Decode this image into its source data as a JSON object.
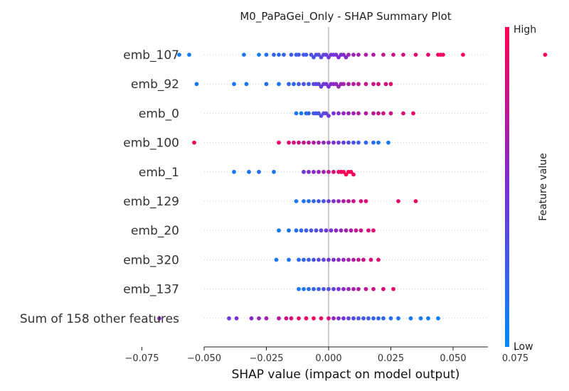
{
  "chart_data": {
    "type": "scatter",
    "title": "M0_PaPaGei_Only - SHAP Summary Plot",
    "xlabel": "SHAP value (impact on model output)",
    "xlim": [
      -0.078,
      0.095
    ],
    "xticks": [
      "−0.075",
      "−0.050",
      "−0.025",
      "0.000",
      "0.025",
      "0.050",
      "0.075"
    ],
    "xtick_values": [
      -0.075,
      -0.05,
      -0.025,
      0.0,
      0.025,
      0.05,
      0.075
    ],
    "features": [
      "emb_107",
      "emb_92",
      "emb_0",
      "emb_100",
      "emb_1",
      "emb_129",
      "emb_20",
      "emb_320",
      "emb_137",
      "Sum of 158 other features"
    ],
    "colorbar": {
      "label": "Feature value",
      "high": "High",
      "low": "Low"
    },
    "colors": {
      "low": "#008bfb",
      "mid": "#7b2fd4",
      "high": "#ff0052",
      "zero_line": "#999999",
      "grid": "#cccccc"
    },
    "series": [
      {
        "feature": "emb_107",
        "points": [
          [
            -0.06,
            0.1
          ],
          [
            -0.056,
            0.08
          ],
          [
            -0.034,
            0.12
          ],
          [
            -0.028,
            0.1
          ],
          [
            -0.025,
            0.15
          ],
          [
            -0.022,
            0.2
          ],
          [
            -0.02,
            0.18
          ],
          [
            -0.018,
            0.22
          ],
          [
            -0.015,
            0.25
          ],
          [
            -0.013,
            0.2
          ],
          [
            -0.012,
            0.3
          ],
          [
            -0.01,
            0.28
          ],
          [
            -0.009,
            0.25
          ],
          [
            -0.007,
            0.32
          ],
          [
            -0.006,
            0.3
          ],
          [
            -0.005,
            0.35
          ],
          [
            -0.004,
            0.33
          ],
          [
            -0.003,
            0.38
          ],
          [
            -0.002,
            0.4
          ],
          [
            -0.001,
            0.42
          ],
          [
            0.0,
            0.45
          ],
          [
            0.001,
            0.48
          ],
          [
            0.002,
            0.5
          ],
          [
            0.003,
            0.46
          ],
          [
            0.004,
            0.52
          ],
          [
            0.005,
            0.5
          ],
          [
            0.006,
            0.55
          ],
          [
            0.007,
            0.52
          ],
          [
            0.008,
            0.6
          ],
          [
            0.01,
            0.62
          ],
          [
            0.012,
            0.65
          ],
          [
            0.015,
            0.7
          ],
          [
            0.018,
            0.68
          ],
          [
            0.022,
            0.75
          ],
          [
            0.026,
            0.8
          ],
          [
            0.03,
            0.82
          ],
          [
            0.035,
            0.88
          ],
          [
            0.04,
            0.9
          ],
          [
            0.044,
            0.92
          ],
          [
            0.045,
            0.95
          ],
          [
            0.046,
            0.94
          ],
          [
            0.054,
            0.96
          ],
          [
            0.087,
            1.0
          ]
        ]
      },
      {
        "feature": "emb_92",
        "points": [
          [
            -0.053,
            0.1
          ],
          [
            -0.038,
            0.12
          ],
          [
            -0.033,
            0.1
          ],
          [
            -0.025,
            0.15
          ],
          [
            -0.02,
            0.12
          ],
          [
            -0.016,
            0.2
          ],
          [
            -0.014,
            0.18
          ],
          [
            -0.012,
            0.25
          ],
          [
            -0.01,
            0.3
          ],
          [
            -0.008,
            0.28
          ],
          [
            -0.006,
            0.35
          ],
          [
            -0.005,
            0.4
          ],
          [
            -0.004,
            0.38
          ],
          [
            -0.003,
            0.42
          ],
          [
            -0.002,
            0.45
          ],
          [
            -0.001,
            0.48
          ],
          [
            0.0,
            0.5
          ],
          [
            0.001,
            0.52
          ],
          [
            0.002,
            0.55
          ],
          [
            0.003,
            0.58
          ],
          [
            0.004,
            0.6
          ],
          [
            0.005,
            0.62
          ],
          [
            0.006,
            0.65
          ],
          [
            0.008,
            0.68
          ],
          [
            0.01,
            0.72
          ],
          [
            0.012,
            0.75
          ],
          [
            0.015,
            0.78
          ],
          [
            0.018,
            0.8
          ],
          [
            0.02,
            0.82
          ],
          [
            0.023,
            0.85
          ],
          [
            0.025,
            0.88
          ]
        ]
      },
      {
        "feature": "emb_0",
        "points": [
          [
            -0.013,
            0.1
          ],
          [
            -0.011,
            0.12
          ],
          [
            -0.009,
            0.15
          ],
          [
            -0.008,
            0.2
          ],
          [
            -0.006,
            0.25
          ],
          [
            -0.005,
            0.28
          ],
          [
            -0.004,
            0.3
          ],
          [
            -0.003,
            0.35
          ],
          [
            -0.002,
            0.38
          ],
          [
            -0.001,
            0.4
          ],
          [
            0.0,
            0.45
          ],
          [
            0.002,
            0.5
          ],
          [
            0.004,
            0.55
          ],
          [
            0.006,
            0.58
          ],
          [
            0.008,
            0.6
          ],
          [
            0.01,
            0.65
          ],
          [
            0.012,
            0.68
          ],
          [
            0.015,
            0.7
          ],
          [
            0.018,
            0.75
          ],
          [
            0.02,
            0.78
          ],
          [
            0.022,
            0.8
          ],
          [
            0.025,
            0.82
          ],
          [
            0.03,
            0.85
          ],
          [
            0.034,
            0.9
          ]
        ]
      },
      {
        "feature": "emb_100",
        "points": [
          [
            -0.054,
            0.95
          ],
          [
            -0.02,
            0.9
          ],
          [
            -0.016,
            0.88
          ],
          [
            -0.014,
            0.85
          ],
          [
            -0.012,
            0.8
          ],
          [
            -0.01,
            0.78
          ],
          [
            -0.008,
            0.75
          ],
          [
            -0.006,
            0.7
          ],
          [
            -0.004,
            0.65
          ],
          [
            -0.002,
            0.6
          ],
          [
            0.0,
            0.55
          ],
          [
            0.002,
            0.5
          ],
          [
            0.004,
            0.45
          ],
          [
            0.006,
            0.4
          ],
          [
            0.008,
            0.35
          ],
          [
            0.01,
            0.3
          ],
          [
            0.012,
            0.25
          ],
          [
            0.015,
            0.2
          ],
          [
            0.018,
            0.15
          ],
          [
            0.02,
            0.12
          ],
          [
            0.024,
            0.1
          ]
        ]
      },
      {
        "feature": "emb_1",
        "points": [
          [
            -0.038,
            0.1
          ],
          [
            -0.032,
            0.12
          ],
          [
            -0.028,
            0.15
          ],
          [
            -0.022,
            0.12
          ],
          [
            -0.01,
            0.45
          ],
          [
            -0.008,
            0.5
          ],
          [
            -0.006,
            0.55
          ],
          [
            -0.004,
            0.6
          ],
          [
            -0.002,
            0.65
          ],
          [
            0.0,
            0.75
          ],
          [
            0.002,
            0.85
          ],
          [
            0.004,
            0.9
          ],
          [
            0.005,
            0.95
          ],
          [
            0.006,
            0.98
          ],
          [
            0.007,
            1.0
          ],
          [
            0.008,
            1.0
          ],
          [
            0.009,
            0.98
          ],
          [
            0.01,
            0.95
          ]
        ]
      },
      {
        "feature": "emb_129",
        "points": [
          [
            -0.013,
            0.1
          ],
          [
            -0.01,
            0.12
          ],
          [
            -0.008,
            0.15
          ],
          [
            -0.006,
            0.2
          ],
          [
            -0.004,
            0.25
          ],
          [
            -0.002,
            0.3
          ],
          [
            0.0,
            0.4
          ],
          [
            0.002,
            0.5
          ],
          [
            0.004,
            0.6
          ],
          [
            0.006,
            0.7
          ],
          [
            0.008,
            0.75
          ],
          [
            0.01,
            0.8
          ],
          [
            0.013,
            0.85
          ],
          [
            0.015,
            0.88
          ],
          [
            0.028,
            0.9
          ],
          [
            0.035,
            0.95
          ]
        ]
      },
      {
        "feature": "emb_20",
        "points": [
          [
            -0.02,
            0.1
          ],
          [
            -0.016,
            0.12
          ],
          [
            -0.013,
            0.15
          ],
          [
            -0.011,
            0.2
          ],
          [
            -0.009,
            0.25
          ],
          [
            -0.007,
            0.3
          ],
          [
            -0.005,
            0.35
          ],
          [
            -0.003,
            0.4
          ],
          [
            -0.001,
            0.45
          ],
          [
            0.001,
            0.5
          ],
          [
            0.003,
            0.55
          ],
          [
            0.005,
            0.6
          ],
          [
            0.007,
            0.65
          ],
          [
            0.009,
            0.7
          ],
          [
            0.011,
            0.75
          ],
          [
            0.013,
            0.8
          ],
          [
            0.016,
            0.85
          ],
          [
            0.018,
            0.88
          ]
        ]
      },
      {
        "feature": "emb_320",
        "points": [
          [
            -0.021,
            0.1
          ],
          [
            -0.016,
            0.12
          ],
          [
            -0.012,
            0.15
          ],
          [
            -0.01,
            0.2
          ],
          [
            -0.008,
            0.25
          ],
          [
            -0.006,
            0.3
          ],
          [
            -0.004,
            0.35
          ],
          [
            -0.002,
            0.4
          ],
          [
            0.0,
            0.45
          ],
          [
            0.002,
            0.5
          ],
          [
            0.004,
            0.55
          ],
          [
            0.006,
            0.6
          ],
          [
            0.008,
            0.65
          ],
          [
            0.01,
            0.7
          ],
          [
            0.012,
            0.75
          ],
          [
            0.014,
            0.8
          ],
          [
            0.017,
            0.85
          ],
          [
            0.02,
            0.88
          ]
        ]
      },
      {
        "feature": "emb_137",
        "points": [
          [
            -0.012,
            0.1
          ],
          [
            -0.01,
            0.12
          ],
          [
            -0.008,
            0.15
          ],
          [
            -0.006,
            0.2
          ],
          [
            -0.004,
            0.25
          ],
          [
            -0.002,
            0.3
          ],
          [
            0.0,
            0.35
          ],
          [
            0.002,
            0.4
          ],
          [
            0.004,
            0.5
          ],
          [
            0.006,
            0.55
          ],
          [
            0.008,
            0.6
          ],
          [
            0.01,
            0.65
          ],
          [
            0.012,
            0.7
          ],
          [
            0.015,
            0.75
          ],
          [
            0.018,
            0.8
          ],
          [
            0.022,
            0.85
          ],
          [
            0.026,
            0.9
          ]
        ]
      },
      {
        "feature": "Sum of 158 other features",
        "points": [
          [
            -0.068,
            0.5
          ],
          [
            -0.04,
            0.45
          ],
          [
            -0.037,
            0.5
          ],
          [
            -0.031,
            0.55
          ],
          [
            -0.028,
            0.6
          ],
          [
            -0.025,
            0.65
          ],
          [
            -0.02,
            0.7
          ],
          [
            -0.017,
            0.8
          ],
          [
            -0.015,
            0.85
          ],
          [
            -0.012,
            0.9
          ],
          [
            -0.009,
            0.92
          ],
          [
            -0.006,
            0.95
          ],
          [
            -0.003,
            0.9
          ],
          [
            0.0,
            0.85
          ],
          [
            0.002,
            0.6
          ],
          [
            0.004,
            0.5
          ],
          [
            0.006,
            0.45
          ],
          [
            0.008,
            0.4
          ],
          [
            0.01,
            0.35
          ],
          [
            0.012,
            0.3
          ],
          [
            0.014,
            0.28
          ],
          [
            0.016,
            0.25
          ],
          [
            0.018,
            0.22
          ],
          [
            0.02,
            0.2
          ],
          [
            0.022,
            0.18
          ],
          [
            0.025,
            0.15
          ],
          [
            0.028,
            0.12
          ],
          [
            0.033,
            0.1
          ],
          [
            0.037,
            0.1
          ],
          [
            0.04,
            0.08
          ],
          [
            0.044,
            0.06
          ]
        ]
      }
    ]
  }
}
